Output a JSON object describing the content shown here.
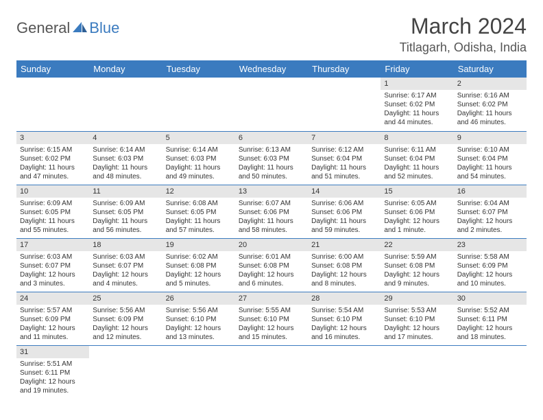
{
  "logo": {
    "part1": "General",
    "part2": "Blue"
  },
  "title": "March 2024",
  "location": "Titlagarh, Odisha, India",
  "weekdays": [
    "Sunday",
    "Monday",
    "Tuesday",
    "Wednesday",
    "Thursday",
    "Friday",
    "Saturday"
  ],
  "colors": {
    "header_bg": "#3b7bbf",
    "header_text": "#ffffff",
    "daynum_bg": "#e6e6e6",
    "border": "#3b7bbf"
  },
  "grid": [
    [
      {
        "day": "",
        "lines": []
      },
      {
        "day": "",
        "lines": []
      },
      {
        "day": "",
        "lines": []
      },
      {
        "day": "",
        "lines": []
      },
      {
        "day": "",
        "lines": []
      },
      {
        "day": "1",
        "lines": [
          "Sunrise: 6:17 AM",
          "Sunset: 6:02 PM",
          "Daylight: 11 hours and 44 minutes."
        ]
      },
      {
        "day": "2",
        "lines": [
          "Sunrise: 6:16 AM",
          "Sunset: 6:02 PM",
          "Daylight: 11 hours and 46 minutes."
        ]
      }
    ],
    [
      {
        "day": "3",
        "lines": [
          "Sunrise: 6:15 AM",
          "Sunset: 6:02 PM",
          "Daylight: 11 hours and 47 minutes."
        ]
      },
      {
        "day": "4",
        "lines": [
          "Sunrise: 6:14 AM",
          "Sunset: 6:03 PM",
          "Daylight: 11 hours and 48 minutes."
        ]
      },
      {
        "day": "5",
        "lines": [
          "Sunrise: 6:14 AM",
          "Sunset: 6:03 PM",
          "Daylight: 11 hours and 49 minutes."
        ]
      },
      {
        "day": "6",
        "lines": [
          "Sunrise: 6:13 AM",
          "Sunset: 6:03 PM",
          "Daylight: 11 hours and 50 minutes."
        ]
      },
      {
        "day": "7",
        "lines": [
          "Sunrise: 6:12 AM",
          "Sunset: 6:04 PM",
          "Daylight: 11 hours and 51 minutes."
        ]
      },
      {
        "day": "8",
        "lines": [
          "Sunrise: 6:11 AM",
          "Sunset: 6:04 PM",
          "Daylight: 11 hours and 52 minutes."
        ]
      },
      {
        "day": "9",
        "lines": [
          "Sunrise: 6:10 AM",
          "Sunset: 6:04 PM",
          "Daylight: 11 hours and 54 minutes."
        ]
      }
    ],
    [
      {
        "day": "10",
        "lines": [
          "Sunrise: 6:09 AM",
          "Sunset: 6:05 PM",
          "Daylight: 11 hours and 55 minutes."
        ]
      },
      {
        "day": "11",
        "lines": [
          "Sunrise: 6:09 AM",
          "Sunset: 6:05 PM",
          "Daylight: 11 hours and 56 minutes."
        ]
      },
      {
        "day": "12",
        "lines": [
          "Sunrise: 6:08 AM",
          "Sunset: 6:05 PM",
          "Daylight: 11 hours and 57 minutes."
        ]
      },
      {
        "day": "13",
        "lines": [
          "Sunrise: 6:07 AM",
          "Sunset: 6:06 PM",
          "Daylight: 11 hours and 58 minutes."
        ]
      },
      {
        "day": "14",
        "lines": [
          "Sunrise: 6:06 AM",
          "Sunset: 6:06 PM",
          "Daylight: 11 hours and 59 minutes."
        ]
      },
      {
        "day": "15",
        "lines": [
          "Sunrise: 6:05 AM",
          "Sunset: 6:06 PM",
          "Daylight: 12 hours and 1 minute."
        ]
      },
      {
        "day": "16",
        "lines": [
          "Sunrise: 6:04 AM",
          "Sunset: 6:07 PM",
          "Daylight: 12 hours and 2 minutes."
        ]
      }
    ],
    [
      {
        "day": "17",
        "lines": [
          "Sunrise: 6:03 AM",
          "Sunset: 6:07 PM",
          "Daylight: 12 hours and 3 minutes."
        ]
      },
      {
        "day": "18",
        "lines": [
          "Sunrise: 6:03 AM",
          "Sunset: 6:07 PM",
          "Daylight: 12 hours and 4 minutes."
        ]
      },
      {
        "day": "19",
        "lines": [
          "Sunrise: 6:02 AM",
          "Sunset: 6:08 PM",
          "Daylight: 12 hours and 5 minutes."
        ]
      },
      {
        "day": "20",
        "lines": [
          "Sunrise: 6:01 AM",
          "Sunset: 6:08 PM",
          "Daylight: 12 hours and 6 minutes."
        ]
      },
      {
        "day": "21",
        "lines": [
          "Sunrise: 6:00 AM",
          "Sunset: 6:08 PM",
          "Daylight: 12 hours and 8 minutes."
        ]
      },
      {
        "day": "22",
        "lines": [
          "Sunrise: 5:59 AM",
          "Sunset: 6:08 PM",
          "Daylight: 12 hours and 9 minutes."
        ]
      },
      {
        "day": "23",
        "lines": [
          "Sunrise: 5:58 AM",
          "Sunset: 6:09 PM",
          "Daylight: 12 hours and 10 minutes."
        ]
      }
    ],
    [
      {
        "day": "24",
        "lines": [
          "Sunrise: 5:57 AM",
          "Sunset: 6:09 PM",
          "Daylight: 12 hours and 11 minutes."
        ]
      },
      {
        "day": "25",
        "lines": [
          "Sunrise: 5:56 AM",
          "Sunset: 6:09 PM",
          "Daylight: 12 hours and 12 minutes."
        ]
      },
      {
        "day": "26",
        "lines": [
          "Sunrise: 5:56 AM",
          "Sunset: 6:10 PM",
          "Daylight: 12 hours and 13 minutes."
        ]
      },
      {
        "day": "27",
        "lines": [
          "Sunrise: 5:55 AM",
          "Sunset: 6:10 PM",
          "Daylight: 12 hours and 15 minutes."
        ]
      },
      {
        "day": "28",
        "lines": [
          "Sunrise: 5:54 AM",
          "Sunset: 6:10 PM",
          "Daylight: 12 hours and 16 minutes."
        ]
      },
      {
        "day": "29",
        "lines": [
          "Sunrise: 5:53 AM",
          "Sunset: 6:10 PM",
          "Daylight: 12 hours and 17 minutes."
        ]
      },
      {
        "day": "30",
        "lines": [
          "Sunrise: 5:52 AM",
          "Sunset: 6:11 PM",
          "Daylight: 12 hours and 18 minutes."
        ]
      }
    ],
    [
      {
        "day": "31",
        "lines": [
          "Sunrise: 5:51 AM",
          "Sunset: 6:11 PM",
          "Daylight: 12 hours and 19 minutes."
        ]
      },
      {
        "day": "",
        "lines": []
      },
      {
        "day": "",
        "lines": []
      },
      {
        "day": "",
        "lines": []
      },
      {
        "day": "",
        "lines": []
      },
      {
        "day": "",
        "lines": []
      },
      {
        "day": "",
        "lines": []
      }
    ]
  ]
}
